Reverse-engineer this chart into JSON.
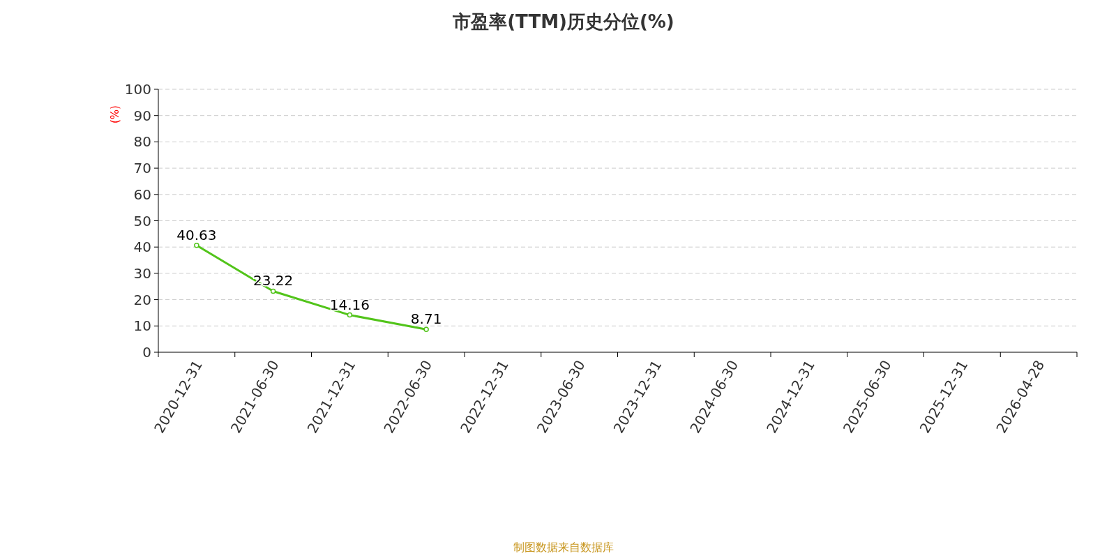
{
  "chart_data": {
    "type": "line",
    "title": "市盈率(TTM)历史分位(%)",
    "ylabel": "(%)",
    "categories": [
      "2020-12-31",
      "2021-06-30",
      "2021-12-31",
      "2022-06-30",
      "2022-12-31",
      "2023-06-30",
      "2023-12-31",
      "2024-06-30",
      "2024-12-31",
      "2025-06-30",
      "2025-12-31",
      "2026-04-28"
    ],
    "series": [
      {
        "color": "#52c41a",
        "values": [
          40.63,
          23.22,
          14.16,
          8.71,
          null,
          null,
          null,
          null,
          null,
          null,
          null,
          null
        ]
      }
    ],
    "ylim": [
      0,
      100
    ],
    "yticks": [
      0,
      10,
      20,
      30,
      40,
      50,
      60,
      70,
      80,
      90,
      100
    ],
    "grid": "y",
    "marker": "circle",
    "data_labels": true,
    "annotations": [
      "制图数据来自数据库"
    ]
  }
}
